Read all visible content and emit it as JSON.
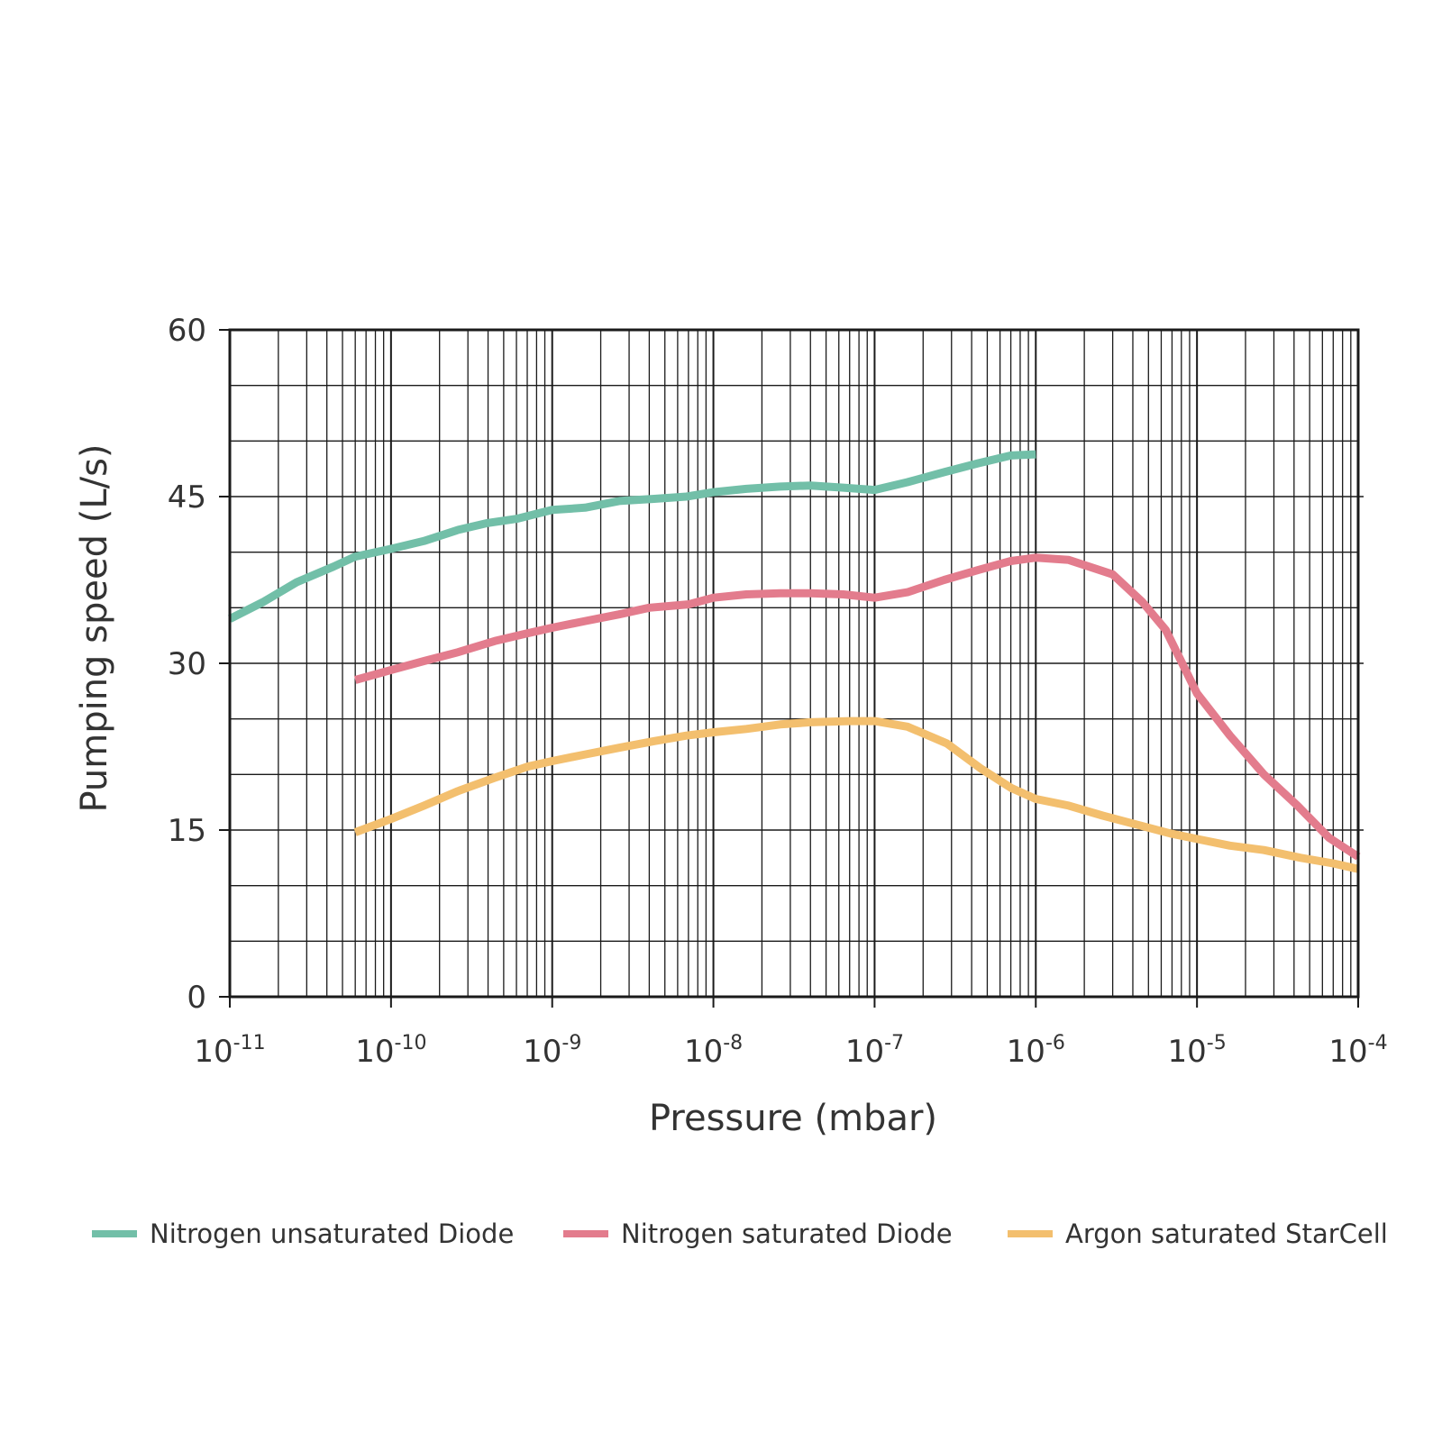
{
  "chart_data": {
    "type": "line",
    "title": "",
    "xlabel": "Pressure (mbar)",
    "ylabel": "Pumping speed (L/s)",
    "x_scale": "log",
    "xlim": [
      1e-11,
      0.0001
    ],
    "ylim": [
      0,
      60
    ],
    "x_ticks": [
      {
        "base": "10",
        "exp": "-11",
        "value": 1e-11
      },
      {
        "base": "10",
        "exp": "-10",
        "value": 1e-10
      },
      {
        "base": "10",
        "exp": "-9",
        "value": 1e-09
      },
      {
        "base": "10",
        "exp": "-8",
        "value": 1e-08
      },
      {
        "base": "10",
        "exp": "-7",
        "value": 1e-07
      },
      {
        "base": "10",
        "exp": "-6",
        "value": 1e-06
      },
      {
        "base": "10",
        "exp": "-5",
        "value": 1e-05
      },
      {
        "base": "10",
        "exp": "-4",
        "value": 0.0001
      }
    ],
    "y_ticks": [
      "0",
      "15",
      "30",
      "45",
      "60"
    ],
    "y_tick_values": [
      0,
      15,
      30,
      45,
      60
    ],
    "y_minor_step": 5,
    "grid": true,
    "legend_position": "bottom",
    "series": [
      {
        "name": "Nitrogen unsaturated Diode",
        "color": "#72bfa8",
        "x": [
          1e-11,
          1.6e-11,
          2.6e-11,
          4.4e-11,
          6e-11,
          1e-10,
          1.6e-10,
          2.6e-10,
          3.9e-10,
          6e-10,
          1e-09,
          1.6e-09,
          2.6e-09,
          4.3e-09,
          6.8e-09,
          1e-08,
          1.6e-08,
          2.6e-08,
          4e-08,
          6.4e-08,
          1e-07,
          1.6e-07,
          2.7e-07,
          4.4e-07,
          7e-07,
          1e-06
        ],
        "y": [
          34.0,
          35.5,
          37.3,
          38.7,
          39.6,
          40.3,
          41.0,
          42.0,
          42.6,
          43.0,
          43.8,
          44.0,
          44.6,
          44.8,
          45.0,
          45.4,
          45.7,
          45.9,
          46.0,
          45.8,
          45.6,
          46.3,
          47.2,
          48.0,
          48.7,
          48.8
        ]
      },
      {
        "name": "Nitrogen saturated Diode",
        "color": "#e37c8d",
        "x": [
          6e-11,
          1e-10,
          1.6e-10,
          2.6e-10,
          4.4e-10,
          7e-10,
          1e-09,
          1.6e-09,
          2.6e-09,
          4e-09,
          7e-09,
          1e-08,
          1.6e-08,
          2.6e-08,
          4e-08,
          6.4e-08,
          1e-07,
          1.6e-07,
          2.7e-07,
          4.4e-07,
          7e-07,
          1e-06,
          1.6e-06,
          3e-06,
          4.6e-06,
          6.4e-06,
          1e-05,
          1.6e-05,
          2.6e-05,
          4.2e-05,
          6.6e-05,
          0.0001
        ],
        "y": [
          28.5,
          29.4,
          30.2,
          31.0,
          32.0,
          32.7,
          33.2,
          33.8,
          34.4,
          35.0,
          35.3,
          35.9,
          36.2,
          36.3,
          36.3,
          36.2,
          35.9,
          36.4,
          37.5,
          38.4,
          39.2,
          39.5,
          39.3,
          38.0,
          35.5,
          33.0,
          27.3,
          23.5,
          20.0,
          17.2,
          14.3,
          12.6
        ]
      },
      {
        "name": "Argon saturated StarCell",
        "color": "#f3bf6e",
        "x": [
          6e-11,
          1e-10,
          1.6e-10,
          2.6e-10,
          4.4e-10,
          7e-10,
          1e-09,
          1.6e-09,
          2.6e-09,
          4.3e-09,
          6.8e-09,
          1e-08,
          1.6e-08,
          2.6e-08,
          4e-08,
          7e-08,
          1e-07,
          1.6e-07,
          2.8e-07,
          4.6e-07,
          7e-07,
          1e-06,
          1.6e-06,
          2.6e-06,
          4.2e-06,
          6.8e-06,
          1e-05,
          1.6e-05,
          2.6e-05,
          4.4e-05,
          7e-05,
          0.0001
        ],
        "y": [
          14.8,
          16.0,
          17.2,
          18.5,
          19.7,
          20.7,
          21.2,
          21.8,
          22.4,
          23.0,
          23.5,
          23.8,
          24.1,
          24.5,
          24.7,
          24.8,
          24.8,
          24.3,
          22.8,
          20.5,
          18.8,
          17.8,
          17.2,
          16.3,
          15.5,
          14.7,
          14.2,
          13.6,
          13.2,
          12.5,
          12.0,
          11.5
        ]
      }
    ]
  }
}
